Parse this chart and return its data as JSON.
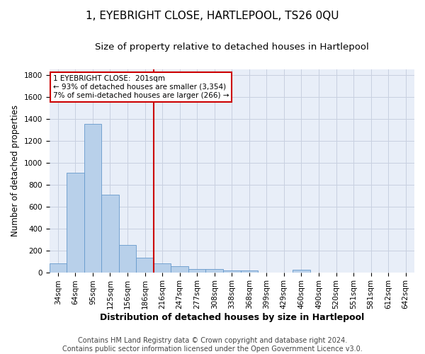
{
  "title": "1, EYEBRIGHT CLOSE, HARTLEPOOL, TS26 0QU",
  "subtitle": "Size of property relative to detached houses in Hartlepool",
  "xlabel": "Distribution of detached houses by size in Hartlepool",
  "ylabel": "Number of detached properties",
  "footer_line1": "Contains HM Land Registry data © Crown copyright and database right 2024.",
  "footer_line2": "Contains public sector information licensed under the Open Government Licence v3.0.",
  "categories": [
    "34sqm",
    "64sqm",
    "95sqm",
    "125sqm",
    "156sqm",
    "186sqm",
    "216sqm",
    "247sqm",
    "277sqm",
    "308sqm",
    "338sqm",
    "368sqm",
    "399sqm",
    "429sqm",
    "460sqm",
    "490sqm",
    "520sqm",
    "551sqm",
    "581sqm",
    "612sqm",
    "642sqm"
  ],
  "values": [
    80,
    910,
    1355,
    710,
    248,
    135,
    80,
    55,
    30,
    30,
    18,
    15,
    0,
    0,
    20,
    0,
    0,
    0,
    0,
    0,
    0
  ],
  "bar_color": "#b8d0ea",
  "bar_edge_color": "#6699cc",
  "vline_color": "#cc0000",
  "annotation_line1": "1 EYEBRIGHT CLOSE:  201sqm",
  "annotation_line2": "← 93% of detached houses are smaller (3,354)",
  "annotation_line3": "7% of semi-detached houses are larger (266) →",
  "annotation_box_color": "#cc0000",
  "ylim": [
    0,
    1850
  ],
  "yticks": [
    0,
    200,
    400,
    600,
    800,
    1000,
    1200,
    1400,
    1600,
    1800
  ],
  "grid_color": "#c8d0e0",
  "background_color": "#e8eef8",
  "title_fontsize": 11,
  "subtitle_fontsize": 9.5,
  "ylabel_fontsize": 8.5,
  "xlabel_fontsize": 9,
  "tick_fontsize": 7.5,
  "footer_fontsize": 7,
  "ann_fontsize": 7.5
}
